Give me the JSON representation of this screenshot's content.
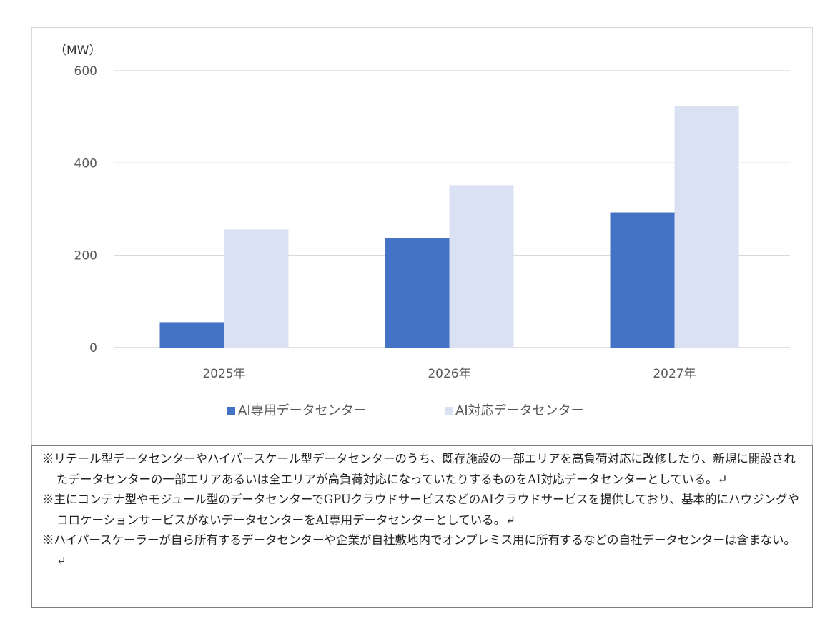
{
  "chart_data": {
    "type": "bar",
    "unit_label": "（MW）",
    "categories": [
      "2025年",
      "2026年",
      "2027年"
    ],
    "series": [
      {
        "name": "AI専用データセンター",
        "color": "#4472c4",
        "values": [
          55,
          237,
          293
        ]
      },
      {
        "name": "AI対応データセンター",
        "color": "#d9e1f2",
        "values": [
          256,
          352,
          523
        ]
      }
    ],
    "ylim": [
      0,
      600
    ],
    "yticks": [
      0,
      200,
      400,
      600
    ],
    "grid": true,
    "legend_position": "bottom"
  },
  "notes": [
    "※リテール型データセンターやハイパースケール型データセンターのうち、既存施設の一部エリアを高負荷対応に改修したり、新規に開設されたデータセンターの一部エリアあるいは全エリアが高負荷対応になっていたりするものをAI対応データセンターとしている。↵",
    "※主にコンテナ型やモジュール型のデータセンターでGPUクラウドサービスなどのAIクラウドサービスを提供しており、基本的にハウジングやコロケーションサービスがないデータセンターをAI専用データセンターとしている。↵",
    "※ハイパースケーラーが自ら所有するデータセンターや企業が自社敷地内でオンプレミス用に所有するなどの自社データセンターは含まない。↵"
  ]
}
